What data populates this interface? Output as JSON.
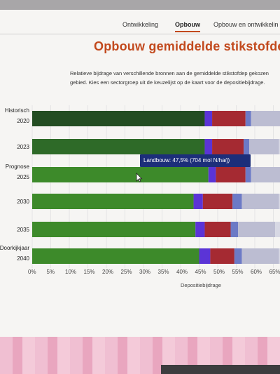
{
  "tabs": {
    "ontwikkeling": "Ontwikkeling",
    "opbouw": "Opbouw",
    "opbouw_ontwikkeling": "Opbouw en ontwikkelin"
  },
  "page": {
    "title": "Opbouw gemiddelde stikstofdep",
    "description": "Relatieve bijdrage van verschillende bronnen aan de gemiddelde stikstofdep gekozen gebied. Kies een sectorgroep uit de keuzelijst op de kaart voor de depositiebijdrage."
  },
  "colors": {
    "accent": "#c2491d",
    "landbouw_historisch": "#234d22",
    "landbouw_2023": "#2e6a28",
    "landbouw_prognose": "#3d8a2a",
    "purple": "#5b34d6",
    "red": "#a52a32",
    "blue": "#6c7ac6",
    "grey": "#bcbdd2",
    "tooltip_bg": "#1c2e7a"
  },
  "chart_data": {
    "type": "bar",
    "orientation": "horizontal",
    "stacked": true,
    "categories": [
      {
        "group": "Historisch",
        "year": "2020"
      },
      {
        "group": "",
        "year": "2023"
      },
      {
        "group": "Prognose",
        "year": "2025"
      },
      {
        "group": "",
        "year": "2030"
      },
      {
        "group": "",
        "year": "2035"
      },
      {
        "group": "Doorkijkjaar",
        "year": "2040"
      }
    ],
    "series": [
      {
        "name": "Landbouw",
        "values": [
          46.5,
          46.5,
          47.5,
          43.5,
          44.0,
          45.0
        ]
      },
      {
        "values": [
          2.0,
          2.0,
          2.0,
          2.5,
          2.5,
          3.0
        ]
      },
      {
        "values": [
          9.0,
          8.5,
          8.0,
          8.0,
          7.0,
          6.5
        ]
      },
      {
        "values": [
          1.5,
          1.5,
          1.5,
          2.5,
          2.0,
          2.0
        ]
      },
      {
        "values": [
          8.0,
          8.0,
          8.0,
          10.0,
          10.0,
          10.0
        ]
      }
    ],
    "x_ticks": [
      "0%",
      "5%",
      "10%",
      "15%",
      "20%",
      "25%",
      "30%",
      "35%",
      "40%",
      "45%",
      "50%",
      "55%",
      "60%",
      "65%"
    ],
    "xlim": [
      0,
      67
    ],
    "xlabel": "Depositiebijdrage",
    "tooltip": "Landbouw: 47,5% (704 mol N/ha/j)"
  }
}
